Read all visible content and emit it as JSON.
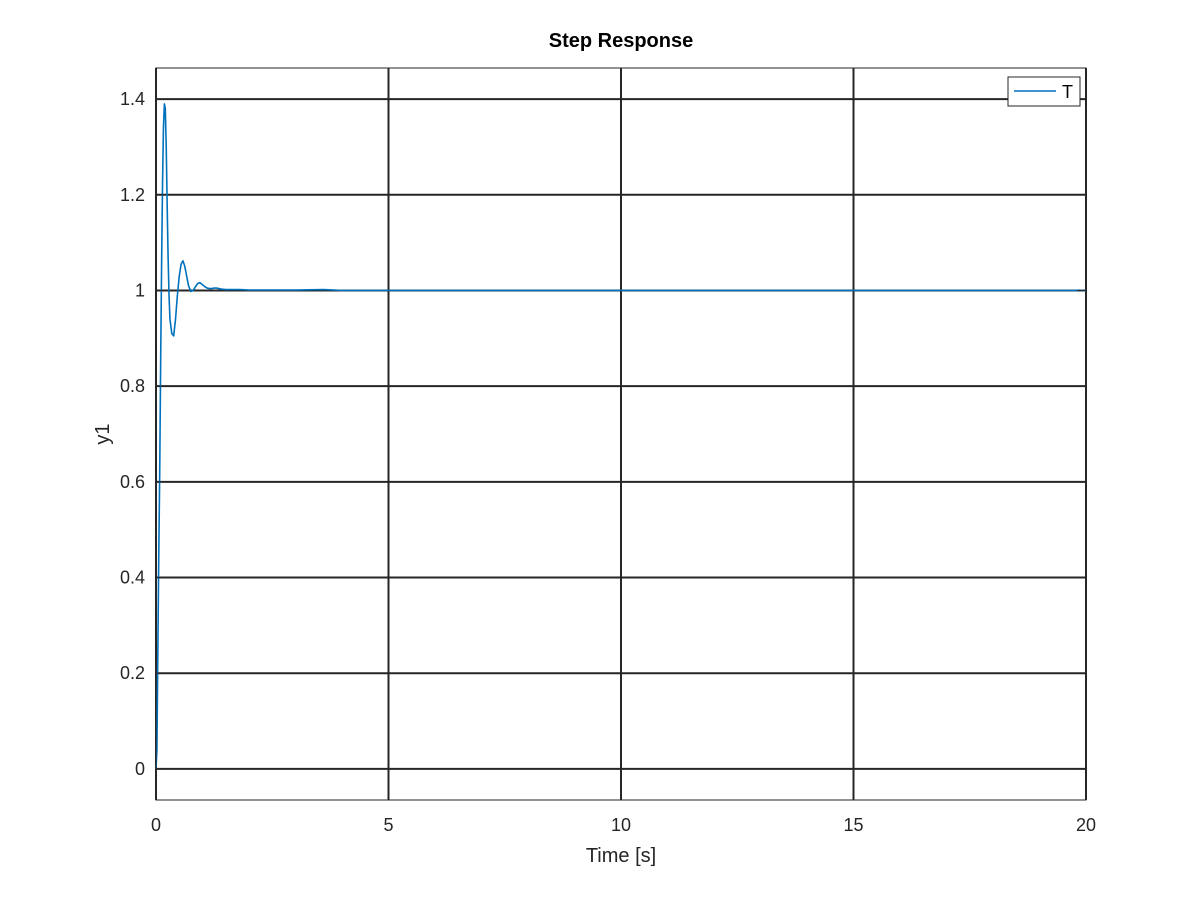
{
  "chart_data": {
    "type": "line",
    "title": "Step Response",
    "xlabel": "Time [s]",
    "ylabel": "y1",
    "xlim": [
      0,
      20
    ],
    "ylim": [
      -0.065,
      1.465
    ],
    "xticks": [
      0,
      5,
      10,
      15,
      20
    ],
    "xtick_labels": [
      "0",
      "5",
      "10",
      "15",
      "20"
    ],
    "yticks": [
      0,
      0.2,
      0.4,
      0.6,
      0.8,
      1,
      1.2,
      1.4
    ],
    "ytick_labels": [
      "0",
      "0.2",
      "0.4",
      "0.6",
      "0.8",
      "1",
      "1.2",
      "1.4"
    ],
    "grid": true,
    "legend": {
      "position": "top-right",
      "entries": [
        "T"
      ]
    },
    "colors": {
      "line": "#0072bd",
      "axes": "#262626",
      "grid": "#262626",
      "background": "#ffffff"
    },
    "series": [
      {
        "name": "T",
        "x": [
          0,
          0.02,
          0.04,
          0.06,
          0.08,
          0.1,
          0.12,
          0.14,
          0.16,
          0.18,
          0.2,
          0.22,
          0.24,
          0.26,
          0.28,
          0.3,
          0.34,
          0.38,
          0.42,
          0.46,
          0.5,
          0.54,
          0.58,
          0.62,
          0.66,
          0.7,
          0.75,
          0.8,
          0.85,
          0.9,
          0.95,
          1.0,
          1.05,
          1.1,
          1.15,
          1.2,
          1.25,
          1.3,
          1.35,
          1.4,
          1.5,
          1.6,
          1.7,
          1.8,
          2.0,
          2.5,
          3.0,
          3.6,
          4.0,
          6.0,
          10.0,
          15.0,
          20.0
        ],
        "y": [
          0,
          0.04,
          0.25,
          0.45,
          0.62,
          0.85,
          1.05,
          1.22,
          1.34,
          1.39,
          1.38,
          1.3,
          1.18,
          1.07,
          0.99,
          0.94,
          0.91,
          0.905,
          0.94,
          0.99,
          1.03,
          1.055,
          1.062,
          1.05,
          1.03,
          1.01,
          0.998,
          1.0,
          1.008,
          1.015,
          1.016,
          1.012,
          1.008,
          1.005,
          1.004,
          1.004,
          1.005,
          1.005,
          1.004,
          1.003,
          1.002,
          1.002,
          1.002,
          1.002,
          1.001,
          1.001,
          1.001,
          1.002,
          1.0,
          1.0,
          1.0,
          1.0,
          1.0
        ]
      }
    ]
  }
}
